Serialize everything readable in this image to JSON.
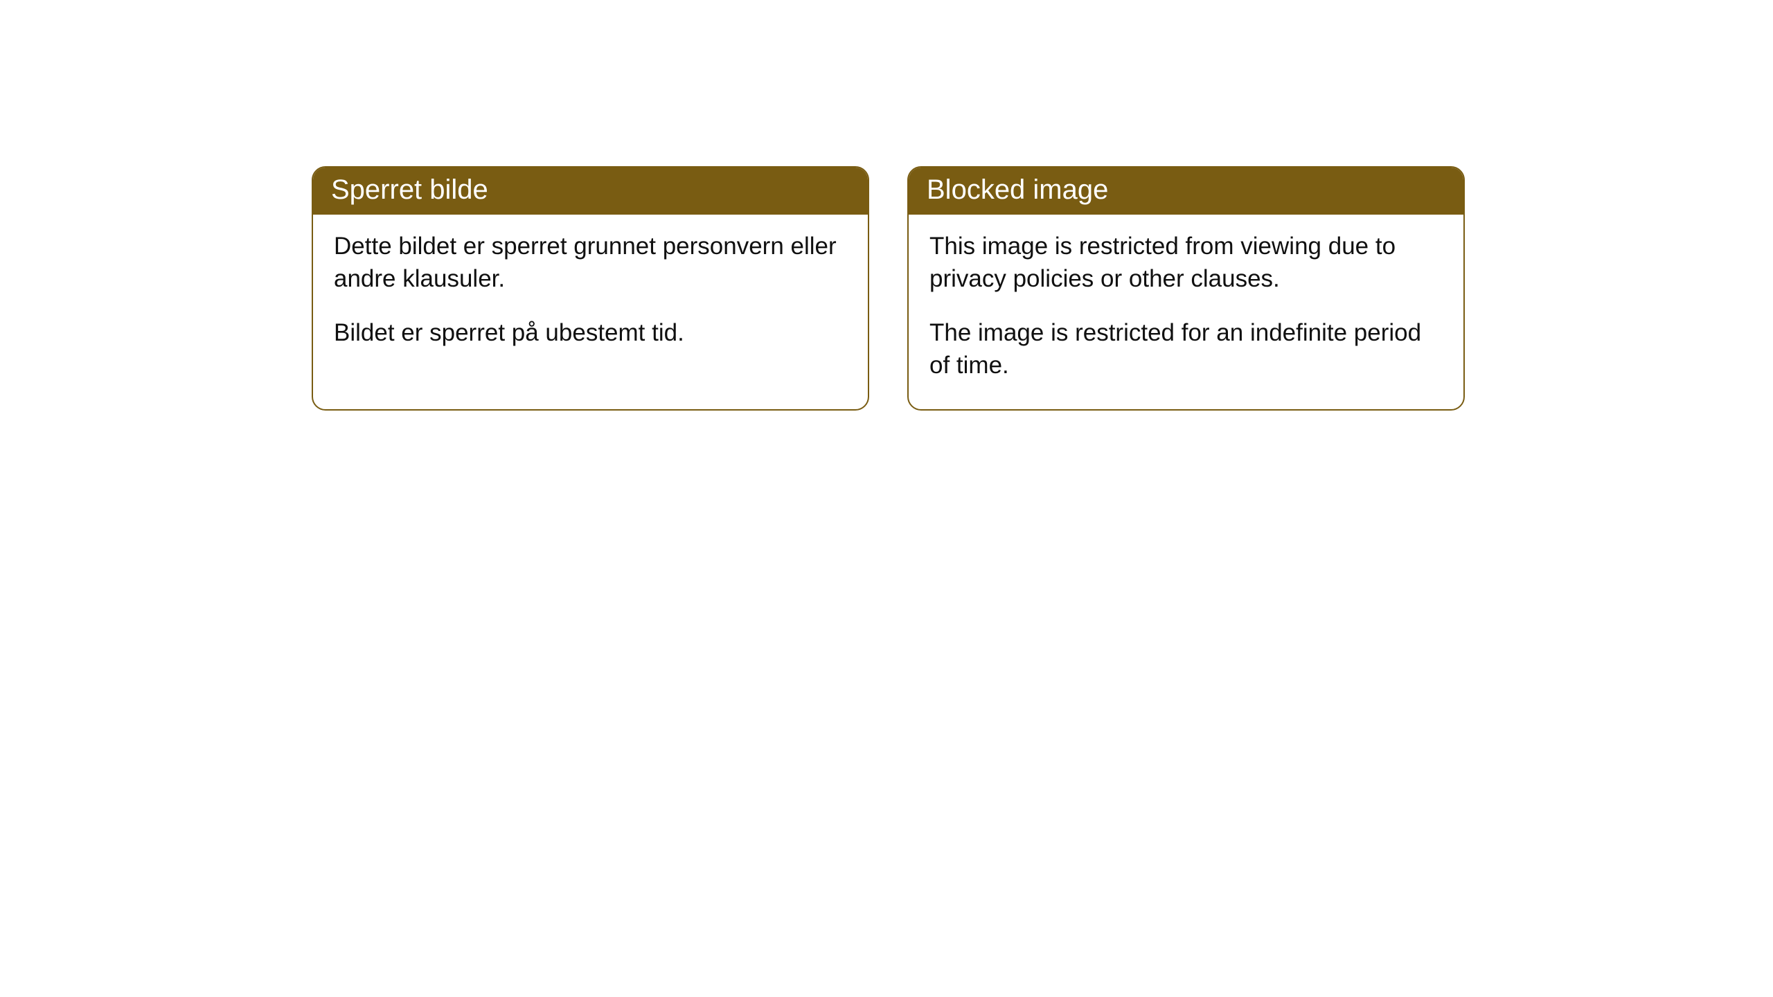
{
  "cards": [
    {
      "title": "Sperret bilde",
      "body_line1": "Dette bildet er sperret grunnet personvern eller andre klausuler.",
      "body_line2": "Bildet er sperret på ubestemt tid."
    },
    {
      "title": "Blocked image",
      "body_line1": "This image is restricted from viewing due to privacy policies or other clauses.",
      "body_line2": "The image is restricted for an indefinite period of time."
    }
  ],
  "styling": {
    "header_background": "#795c12",
    "header_text_color": "#ffffff",
    "border_color": "#795c12",
    "body_background": "#ffffff",
    "body_text_color": "#101010",
    "border_radius": 20,
    "header_fontsize": 40,
    "body_fontsize": 35
  }
}
